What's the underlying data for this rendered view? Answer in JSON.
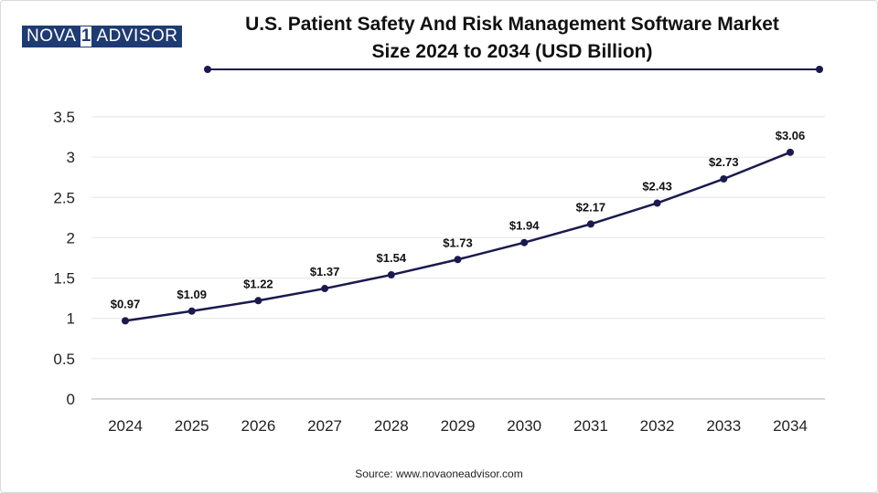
{
  "logo": {
    "part_a": "NOVA",
    "part_b": "1",
    "part_c": "ADVISOR"
  },
  "title_line1": "U.S. Patient Safety And Risk Management Software Market",
  "title_line2": "Size 2024 to 2034 (USD Billion)",
  "source": "Source: www.novaoneadvisor.com",
  "colors": {
    "line": "#1a1a4e",
    "grid": "#e6e6e6",
    "axis": "#bfbfbf",
    "brand": "#1f3b73"
  },
  "chart_data": {
    "type": "line",
    "title": "U.S. Patient Safety And Risk Management Software Market Size 2024 to 2034 (USD Billion)",
    "xlabel": "",
    "ylabel": "",
    "categories": [
      "2024",
      "2025",
      "2026",
      "2027",
      "2028",
      "2029",
      "2030",
      "2031",
      "2032",
      "2033",
      "2034"
    ],
    "values": [
      0.97,
      1.09,
      1.22,
      1.37,
      1.54,
      1.73,
      1.94,
      2.17,
      2.43,
      2.73,
      3.06
    ],
    "data_labels": [
      "$0.97",
      "$1.09",
      "$1.22",
      "$1.37",
      "$1.54",
      "$1.73",
      "$1.94",
      "$2.17",
      "$2.43",
      "$2.73",
      "$3.06"
    ],
    "ylim": [
      0,
      3.5
    ],
    "yticks": [
      "0",
      "0.5",
      "1",
      "1.5",
      "2",
      "2.5",
      "3",
      "3.5"
    ],
    "grid": true,
    "legend": "none"
  }
}
